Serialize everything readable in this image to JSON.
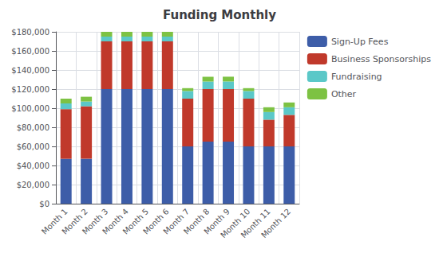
{
  "chart_data": {
    "type": "bar",
    "stacked": true,
    "title": "Funding Monthly",
    "categories": [
      "Month 1",
      "Month 2",
      "Month 3",
      "Month 4",
      "Month 5",
      "Month 6",
      "Month 7",
      "Month 8",
      "Month 9",
      "Month 10",
      "Month 11",
      "Month 12"
    ],
    "series": [
      {
        "name": "Sign-Up Fees",
        "color": "#3d5da8",
        "values": [
          47000,
          47000,
          120000,
          120000,
          120000,
          120000,
          60000,
          65000,
          65000,
          60000,
          60000,
          60000
        ]
      },
      {
        "name": "Business Sponsorships",
        "color": "#c0392b",
        "values": [
          52000,
          55000,
          50000,
          50000,
          50000,
          50000,
          50000,
          55000,
          55000,
          50000,
          28000,
          33000
        ]
      },
      {
        "name": "Fundraising",
        "color": "#5bc8c8",
        "values": [
          6000,
          5000,
          5000,
          5000,
          5000,
          5000,
          8000,
          8000,
          8000,
          8000,
          8000,
          8000
        ]
      },
      {
        "name": "Other",
        "color": "#7dc243",
        "values": [
          5000,
          5000,
          5000,
          5000,
          5000,
          5000,
          3000,
          5000,
          5000,
          3000,
          5000,
          5000
        ]
      }
    ],
    "ylim": [
      0,
      180000
    ],
    "yticks": [
      {
        "value": 0,
        "label": "$0"
      },
      {
        "value": 20000,
        "label": "$20,000"
      },
      {
        "value": 40000,
        "label": "$40,000"
      },
      {
        "value": 60000,
        "label": "$60,000"
      },
      {
        "value": 80000,
        "label": "$80,000"
      },
      {
        "value": 100000,
        "label": "$100,000"
      },
      {
        "value": 120000,
        "label": "$120,000"
      },
      {
        "value": 140000,
        "label": "$140,000"
      },
      {
        "value": 160000,
        "label": "$160,000"
      },
      {
        "value": 180000,
        "label": "$180,000"
      }
    ],
    "grid": true,
    "legend": "right"
  }
}
